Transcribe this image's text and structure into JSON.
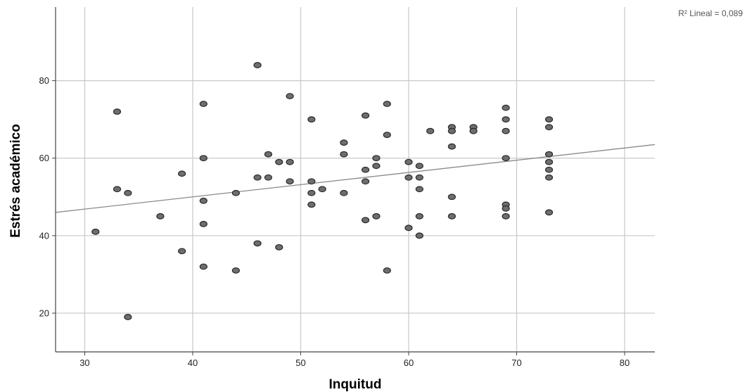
{
  "chart_data": {
    "type": "scatter",
    "xlabel": "Inquitud",
    "ylabel": "Estrés académico",
    "xlim": [
      27.3,
      82.8
    ],
    "ylim": [
      10,
      99
    ],
    "xticks": [
      30,
      40,
      50,
      60,
      70,
      80
    ],
    "yticks": [
      20,
      40,
      60,
      80
    ],
    "grid": true,
    "fit_line": {
      "label": "R² Lineal = 0,089",
      "x0": 27.3,
      "y0": 46.0,
      "x1": 82.8,
      "y1": 63.5
    },
    "point_color": "#6e6e6e",
    "points": [
      [
        31,
        41
      ],
      [
        33,
        72
      ],
      [
        33,
        52
      ],
      [
        34,
        51
      ],
      [
        34,
        19
      ],
      [
        37,
        45
      ],
      [
        39,
        56
      ],
      [
        39,
        36
      ],
      [
        41,
        74
      ],
      [
        41,
        60
      ],
      [
        41,
        49
      ],
      [
        41,
        43
      ],
      [
        41,
        32
      ],
      [
        44,
        51
      ],
      [
        44,
        31
      ],
      [
        46,
        84
      ],
      [
        46,
        55
      ],
      [
        46,
        38
      ],
      [
        47,
        61
      ],
      [
        47,
        55
      ],
      [
        48,
        59
      ],
      [
        48,
        37
      ],
      [
        49,
        76
      ],
      [
        49,
        59
      ],
      [
        49,
        54
      ],
      [
        51,
        70
      ],
      [
        51,
        54
      ],
      [
        51,
        51
      ],
      [
        51,
        48
      ],
      [
        52,
        52
      ],
      [
        54,
        64
      ],
      [
        54,
        61
      ],
      [
        54,
        51
      ],
      [
        56,
        71
      ],
      [
        56,
        57
      ],
      [
        56,
        54
      ],
      [
        56,
        44
      ],
      [
        57,
        60
      ],
      [
        57,
        58
      ],
      [
        57,
        45
      ],
      [
        58,
        74
      ],
      [
        58,
        66
      ],
      [
        58,
        31
      ],
      [
        60,
        59
      ],
      [
        60,
        55
      ],
      [
        60,
        42
      ],
      [
        61,
        58
      ],
      [
        61,
        55
      ],
      [
        61,
        52
      ],
      [
        61,
        45
      ],
      [
        61,
        40
      ],
      [
        62,
        67
      ],
      [
        64,
        68
      ],
      [
        64,
        67
      ],
      [
        64,
        63
      ],
      [
        64,
        50
      ],
      [
        64,
        45
      ],
      [
        66,
        68
      ],
      [
        66,
        67
      ],
      [
        69,
        73
      ],
      [
        69,
        70
      ],
      [
        69,
        67
      ],
      [
        69,
        60
      ],
      [
        69,
        48
      ],
      [
        69,
        47
      ],
      [
        69,
        45
      ],
      [
        73,
        70
      ],
      [
        73,
        68
      ],
      [
        73,
        61
      ],
      [
        73,
        59
      ],
      [
        73,
        57
      ],
      [
        73,
        55
      ],
      [
        73,
        46
      ]
    ]
  }
}
